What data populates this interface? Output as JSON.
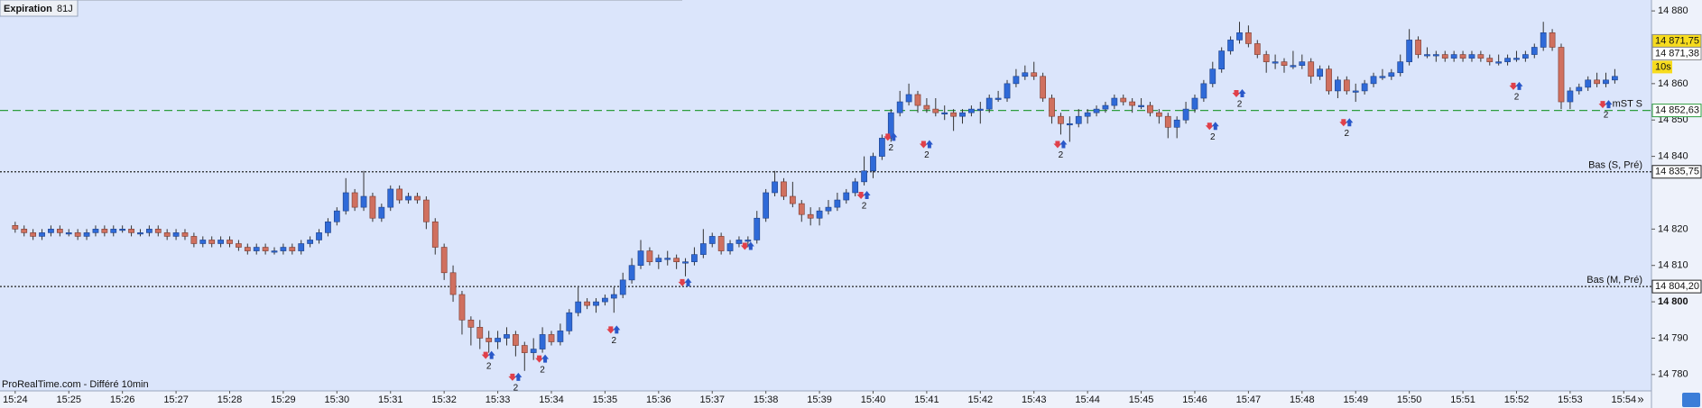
{
  "chart_data": {
    "type": "candlestick",
    "header": {
      "title": "Expiration",
      "code": "81J"
    },
    "footer": "ProRealTime.com - Différé 10min",
    "scroll_label": "»",
    "interval": "10s",
    "colors": {
      "up": "#2f6ad8",
      "down": "#d0705f",
      "background": "#dbe5fb"
    },
    "xlim": [
      -1.7,
      183.1
    ],
    "xticks": [
      {
        "value": 0,
        "label": "15:24"
      },
      {
        "value": 6,
        "label": "15:25"
      },
      {
        "value": 12,
        "label": "15:26"
      },
      {
        "value": 18,
        "label": "15:27"
      },
      {
        "value": 24,
        "label": "15:28"
      },
      {
        "value": 30,
        "label": "15:29"
      },
      {
        "value": 36,
        "label": "15:30"
      },
      {
        "value": 42,
        "label": "15:31"
      },
      {
        "value": 48,
        "label": "15:32"
      },
      {
        "value": 54,
        "label": "15:33"
      },
      {
        "value": 60,
        "label": "15:34"
      },
      {
        "value": 66,
        "label": "15:35"
      },
      {
        "value": 72,
        "label": "15:36"
      },
      {
        "value": 78,
        "label": "15:37"
      },
      {
        "value": 84,
        "label": "15:38"
      },
      {
        "value": 90,
        "label": "15:39"
      },
      {
        "value": 96,
        "label": "15:40"
      },
      {
        "value": 102,
        "label": "15:41"
      },
      {
        "value": 108,
        "label": "15:42"
      },
      {
        "value": 114,
        "label": "15:43"
      },
      {
        "value": 120,
        "label": "15:44"
      },
      {
        "value": 126,
        "label": "15:45"
      },
      {
        "value": 132,
        "label": "15:46"
      },
      {
        "value": 138,
        "label": "15:47"
      },
      {
        "value": 144,
        "label": "15:48"
      },
      {
        "value": 150,
        "label": "15:49"
      },
      {
        "value": 156,
        "label": "15:50"
      },
      {
        "value": 162,
        "label": "15:51"
      },
      {
        "value": 168,
        "label": "15:52"
      },
      {
        "value": 174,
        "label": "15:53"
      },
      {
        "value": 180,
        "label": "15:54"
      }
    ],
    "ylim": [
      14775.5,
      14883
    ],
    "yticks": [
      {
        "value": 14880,
        "label": "14 880"
      },
      {
        "value": 14860,
        "label": "14 860"
      },
      {
        "value": 14850,
        "label": "14 850"
      },
      {
        "value": 14840,
        "label": "14 840"
      },
      {
        "value": 14820,
        "label": "14 820"
      },
      {
        "value": 14810,
        "label": "14 810"
      },
      {
        "value": 14800,
        "label": "14 800",
        "bold": true
      },
      {
        "value": 14790,
        "label": "14 790"
      },
      {
        "value": 14780,
        "label": "14 780"
      }
    ],
    "price_labels": [
      {
        "value": 14871.75,
        "label": "14 871,75",
        "color": "#f7dc1e"
      },
      {
        "value": 14871.38,
        "label": "14 871,38",
        "color": "#ffffff"
      }
    ],
    "levels": [
      {
        "value": 14852.63,
        "label": "14 852,63",
        "name": "mST S",
        "color": "#2e9e3e",
        "dash": "9 5"
      },
      {
        "value": 14835.75,
        "label": "14 835,75",
        "name": "Bas (S, Pré)",
        "color": "#222222",
        "dash": "2 2"
      },
      {
        "value": 14804.2,
        "label": "14 804,20",
        "name": "Bas (M, Pré)",
        "color": "#222222",
        "dash": "2 2"
      }
    ],
    "signals": [
      {
        "candle": 53,
        "price": 14785,
        "label": "2"
      },
      {
        "candle": 56,
        "price": 14779,
        "label": "2"
      },
      {
        "candle": 59,
        "price": 14784,
        "label": "2"
      },
      {
        "candle": 67,
        "price": 14792,
        "label": "2"
      },
      {
        "candle": 75,
        "price": 14805
      },
      {
        "candle": 82,
        "price": 14815
      },
      {
        "candle": 95,
        "price": 14829,
        "label": "2"
      },
      {
        "candle": 98,
        "price": 14845,
        "label": "2"
      },
      {
        "candle": 102,
        "price": 14843,
        "label": "2"
      },
      {
        "candle": 117,
        "price": 14843,
        "label": "2"
      },
      {
        "candle": 134,
        "price": 14848,
        "label": "2"
      },
      {
        "candle": 137,
        "price": 14857,
        "label": "2"
      },
      {
        "candle": 149,
        "price": 14849,
        "label": "2"
      },
      {
        "candle": 168,
        "price": 14859,
        "label": "2"
      },
      {
        "candle": 178,
        "price": 14854,
        "label": "2"
      }
    ],
    "candles": [
      [
        14821,
        14822,
        14819,
        14820
      ],
      [
        14820,
        14821,
        14818,
        14819
      ],
      [
        14819,
        14820,
        14817,
        14818
      ],
      [
        14818,
        14820,
        14817,
        14819
      ],
      [
        14819,
        14821,
        14818,
        14820
      ],
      [
        14820,
        14821,
        14818,
        14819
      ],
      [
        14819,
        14820,
        14818,
        14819
      ],
      [
        14819,
        14820,
        14817,
        14818
      ],
      [
        14818,
        14820,
        14817,
        14819
      ],
      [
        14819,
        14821,
        14818,
        14820
      ],
      [
        14820,
        14821,
        14818,
        14819
      ],
      [
        14819,
        14821,
        14818,
        14820
      ],
      [
        14820,
        14821,
        14819,
        14820
      ],
      [
        14820,
        14821,
        14818,
        14819
      ],
      [
        14819,
        14820,
        14818,
        14819
      ],
      [
        14819,
        14821,
        14818,
        14820
      ],
      [
        14820,
        14821,
        14818,
        14819
      ],
      [
        14819,
        14820,
        14817,
        14818
      ],
      [
        14818,
        14820,
        14817,
        14819
      ],
      [
        14819,
        14820,
        14817,
        14818
      ],
      [
        14818,
        14819,
        14815,
        14816
      ],
      [
        14816,
        14818,
        14815,
        14817
      ],
      [
        14817,
        14818,
        14815,
        14816
      ],
      [
        14816,
        14818,
        14815,
        14817
      ],
      [
        14817,
        14818,
        14815,
        14816
      ],
      [
        14816,
        14817,
        14814,
        14815
      ],
      [
        14815,
        14816,
        14813,
        14814
      ],
      [
        14814,
        14816,
        14813,
        14815
      ],
      [
        14815,
        14816,
        14813,
        14814
      ],
      [
        14814,
        14815,
        14813,
        14814
      ],
      [
        14814,
        14816,
        14813,
        14815
      ],
      [
        14815,
        14816,
        14813,
        14814
      ],
      [
        14814,
        14817,
        14813,
        14816
      ],
      [
        14816,
        14818,
        14815,
        14817
      ],
      [
        14817,
        14820,
        14816,
        14819
      ],
      [
        14819,
        14823,
        14818,
        14822
      ],
      [
        14822,
        14826,
        14821,
        14825
      ],
      [
        14825,
        14834,
        14824,
        14830
      ],
      [
        14830,
        14831,
        14825,
        14826
      ],
      [
        14826,
        14836,
        14825,
        14829
      ],
      [
        14829,
        14830,
        14822,
        14823
      ],
      [
        14823,
        14827,
        14822,
        14826
      ],
      [
        14826,
        14832,
        14825,
        14831
      ],
      [
        14831,
        14832,
        14827,
        14828
      ],
      [
        14828,
        14830,
        14827,
        14829
      ],
      [
        14829,
        14830,
        14827,
        14828
      ],
      [
        14828,
        14829,
        14820,
        14822
      ],
      [
        14822,
        14823,
        14813,
        14815
      ],
      [
        14815,
        14816,
        14806,
        14808
      ],
      [
        14808,
        14810,
        14800,
        14802
      ],
      [
        14802,
        14803,
        14791,
        14795
      ],
      [
        14795,
        14796,
        14788,
        14793
      ],
      [
        14793,
        14795,
        14787,
        14790
      ],
      [
        14790,
        14792,
        14786,
        14789
      ],
      [
        14789,
        14792,
        14787,
        14790
      ],
      [
        14790,
        14793,
        14788,
        14791
      ],
      [
        14791,
        14792,
        14785,
        14788
      ],
      [
        14788,
        14789,
        14781,
        14786
      ],
      [
        14786,
        14790,
        14784,
        14787
      ],
      [
        14787,
        14793,
        14786,
        14791
      ],
      [
        14791,
        14792,
        14788,
        14789
      ],
      [
        14789,
        14794,
        14788,
        14792
      ],
      [
        14792,
        14798,
        14791,
        14797
      ],
      [
        14797,
        14804,
        14796,
        14800
      ],
      [
        14800,
        14801,
        14798,
        14799
      ],
      [
        14799,
        14801,
        14797,
        14800
      ],
      [
        14800,
        14802,
        14799,
        14801
      ],
      [
        14801,
        14804,
        14797,
        14802
      ],
      [
        14802,
        14808,
        14801,
        14806
      ],
      [
        14806,
        14812,
        14805,
        14810
      ],
      [
        14810,
        14817,
        14809,
        14814
      ],
      [
        14814,
        14815,
        14810,
        14811
      ],
      [
        14811,
        14813,
        14809,
        14812
      ],
      [
        14812,
        14814,
        14810,
        14812
      ],
      [
        14812,
        14813,
        14809,
        14811
      ],
      [
        14811,
        14812,
        14807,
        14811
      ],
      [
        14811,
        14815,
        14810,
        14813
      ],
      [
        14813,
        14820,
        14812,
        14816
      ],
      [
        14816,
        14819,
        14815,
        14818
      ],
      [
        14818,
        14819,
        14813,
        14814
      ],
      [
        14814,
        14817,
        14813,
        14816
      ],
      [
        14816,
        14818,
        14815,
        14817
      ],
      [
        14817,
        14818,
        14815,
        14817
      ],
      [
        14817,
        14825,
        14816,
        14823
      ],
      [
        14823,
        14831,
        14822,
        14830
      ],
      [
        14830,
        14836,
        14829,
        14833
      ],
      [
        14833,
        14834,
        14828,
        14829
      ],
      [
        14829,
        14833,
        14826,
        14827
      ],
      [
        14827,
        14828,
        14822,
        14824
      ],
      [
        14824,
        14826,
        14821,
        14823
      ],
      [
        14823,
        14826,
        14821,
        14825
      ],
      [
        14825,
        14828,
        14824,
        14826
      ],
      [
        14826,
        14830,
        14825,
        14828
      ],
      [
        14828,
        14831,
        14827,
        14830
      ],
      [
        14830,
        14834,
        14829,
        14833
      ],
      [
        14833,
        14840,
        14832,
        14836
      ],
      [
        14836,
        14841,
        14834,
        14840
      ],
      [
        14840,
        14846,
        14839,
        14845
      ],
      [
        14845,
        14853,
        14844,
        14852
      ],
      [
        14852,
        14858,
        14851,
        14855
      ],
      [
        14855,
        14860,
        14854,
        14857
      ],
      [
        14857,
        14858,
        14852,
        14854
      ],
      [
        14854,
        14856,
        14852,
        14853
      ],
      [
        14853,
        14856,
        14851,
        14852
      ],
      [
        14852,
        14854,
        14850,
        14852
      ],
      [
        14852,
        14853,
        14847,
        14851
      ],
      [
        14851,
        14853,
        14849,
        14852
      ],
      [
        14852,
        14854,
        14851,
        14853
      ],
      [
        14853,
        14855,
        14849,
        14853
      ],
      [
        14853,
        14857,
        14852,
        14856
      ],
      [
        14856,
        14858,
        14855,
        14856
      ],
      [
        14856,
        14861,
        14855,
        14860
      ],
      [
        14860,
        14864,
        14859,
        14862
      ],
      [
        14862,
        14865,
        14861,
        14863
      ],
      [
        14863,
        14866,
        14861,
        14862
      ],
      [
        14862,
        14863,
        14855,
        14856
      ],
      [
        14856,
        14857,
        14849,
        14851
      ],
      [
        14851,
        14852,
        14846,
        14849
      ],
      [
        14849,
        14851,
        14844,
        14849
      ],
      [
        14849,
        14853,
        14848,
        14851
      ],
      [
        14851,
        14853,
        14849,
        14852
      ],
      [
        14852,
        14854,
        14851,
        14853
      ],
      [
        14853,
        14855,
        14852,
        14854
      ],
      [
        14854,
        14857,
        14853,
        14856
      ],
      [
        14856,
        14857,
        14854,
        14855
      ],
      [
        14855,
        14856,
        14852,
        14854
      ],
      [
        14854,
        14856,
        14853,
        14854
      ],
      [
        14854,
        14855,
        14851,
        14852
      ],
      [
        14852,
        14853,
        14849,
        14851
      ],
      [
        14851,
        14852,
        14845,
        14848
      ],
      [
        14848,
        14851,
        14845,
        14850
      ],
      [
        14850,
        14855,
        14849,
        14853
      ],
      [
        14853,
        14857,
        14852,
        14856
      ],
      [
        14856,
        14861,
        14855,
        14860
      ],
      [
        14860,
        14866,
        14859,
        14864
      ],
      [
        14864,
        14870,
        14863,
        14869
      ],
      [
        14869,
        14873,
        14868,
        14872
      ],
      [
        14872,
        14877,
        14871,
        14874
      ],
      [
        14874,
        14876,
        14870,
        14871
      ],
      [
        14871,
        14872,
        14867,
        14868
      ],
      [
        14868,
        14869,
        14863,
        14866
      ],
      [
        14866,
        14868,
        14864,
        14866
      ],
      [
        14866,
        14867,
        14863,
        14865
      ],
      [
        14865,
        14869,
        14864,
        14865
      ],
      [
        14865,
        14868,
        14864,
        14866
      ],
      [
        14866,
        14867,
        14860,
        14862
      ],
      [
        14862,
        14865,
        14861,
        14864
      ],
      [
        14864,
        14865,
        14857,
        14858
      ],
      [
        14858,
        14862,
        14856,
        14861
      ],
      [
        14861,
        14862,
        14857,
        14858
      ],
      [
        14858,
        14860,
        14855,
        14858
      ],
      [
        14858,
        14861,
        14857,
        14860
      ],
      [
        14860,
        14863,
        14859,
        14862
      ],
      [
        14862,
        14864,
        14861,
        14862
      ],
      [
        14862,
        14864,
        14861,
        14863
      ],
      [
        14863,
        14868,
        14862,
        14866
      ],
      [
        14866,
        14875,
        14865,
        14872
      ],
      [
        14872,
        14873,
        14867,
        14868
      ],
      [
        14868,
        14870,
        14867,
        14868
      ],
      [
        14868,
        14869,
        14866,
        14868
      ],
      [
        14868,
        14869,
        14866,
        14867
      ],
      [
        14867,
        14869,
        14866,
        14868
      ],
      [
        14868,
        14869,
        14866,
        14867
      ],
      [
        14867,
        14869,
        14866,
        14868
      ],
      [
        14868,
        14869,
        14866,
        14867
      ],
      [
        14867,
        14868,
        14865,
        14866
      ],
      [
        14866,
        14868,
        14865,
        14866
      ],
      [
        14866,
        14868,
        14865,
        14867
      ],
      [
        14867,
        14869,
        14866,
        14867
      ],
      [
        14867,
        14869,
        14866,
        14868
      ],
      [
        14868,
        14871,
        14867,
        14870
      ],
      [
        14870,
        14877,
        14869,
        14874
      ],
      [
        14874,
        14875,
        14869,
        14870
      ],
      [
        14870,
        14871,
        14853,
        14855
      ],
      [
        14855,
        14859,
        14853,
        14858
      ],
      [
        14858,
        14860,
        14857,
        14859
      ],
      [
        14859,
        14862,
        14858,
        14861
      ],
      [
        14861,
        14863,
        14859,
        14860
      ],
      [
        14860,
        14863,
        14859,
        14861
      ],
      [
        14861,
        14864,
        14860,
        14862
      ]
    ]
  }
}
